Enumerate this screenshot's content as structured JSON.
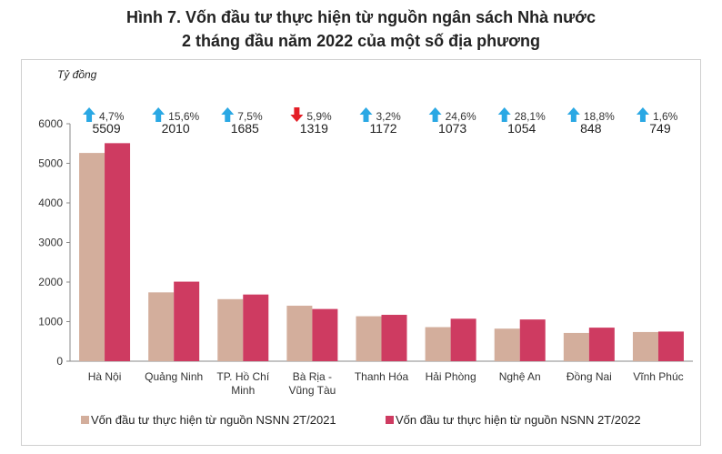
{
  "title": {
    "line1": "Hình 7. Vốn đầu tư thực hiện từ nguồn ngân sách Nhà nước",
    "line2": "2 tháng đầu năm 2022 của một số địa phương"
  },
  "colors": {
    "series_2021": "#D3AE9C",
    "series_2022": "#CE3B61",
    "arrow_up": "#2AA8E4",
    "arrow_down": "#E41E26"
  },
  "chart_data": {
    "type": "bar",
    "title": "Hình 7. Vốn đầu tư thực hiện từ nguồn ngân sách Nhà nước 2 tháng đầu năm 2022 của một số địa phương",
    "ylabel": "Tỷ đồng",
    "ylim": [
      0,
      6000
    ],
    "yticks": [
      0,
      1000,
      2000,
      3000,
      4000,
      5000,
      6000
    ],
    "categories": [
      [
        "Hà Nội"
      ],
      [
        "Quảng Ninh"
      ],
      [
        "TP. Hồ Chí",
        "Minh"
      ],
      [
        "Bà Rịa -",
        "Vũng Tàu"
      ],
      [
        "Thanh Hóa"
      ],
      [
        "Hải Phòng"
      ],
      [
        "Nghệ An"
      ],
      [
        "Đồng Nai"
      ],
      [
        "Vĩnh Phúc"
      ]
    ],
    "series": [
      {
        "name": "Vốn đầu tư thực hiện từ nguồn NSNN 2T/2021",
        "values": [
          5262,
          1739,
          1568,
          1402,
          1136,
          861,
          823,
          714,
          737
        ]
      },
      {
        "name": "Vốn đầu tư thực hiện từ nguồn NSNN 2T/2022",
        "values": [
          5509,
          2010,
          1685,
          1319,
          1172,
          1073,
          1054,
          848,
          749
        ]
      }
    ],
    "data_labels": [
      "5509",
      "2010",
      "1685",
      "1319",
      "1172",
      "1073",
      "1054",
      "848",
      "749"
    ],
    "changes": [
      {
        "text": "4,7%",
        "direction": "up"
      },
      {
        "text": "15,6%",
        "direction": "up"
      },
      {
        "text": "7,5%",
        "direction": "up"
      },
      {
        "text": "5,9%",
        "direction": "down"
      },
      {
        "text": "3,2%",
        "direction": "up"
      },
      {
        "text": "24,6%",
        "direction": "up"
      },
      {
        "text": "28,1%",
        "direction": "up"
      },
      {
        "text": "18,8%",
        "direction": "up"
      },
      {
        "text": "1,6%",
        "direction": "up"
      }
    ],
    "legend_position": "bottom"
  }
}
